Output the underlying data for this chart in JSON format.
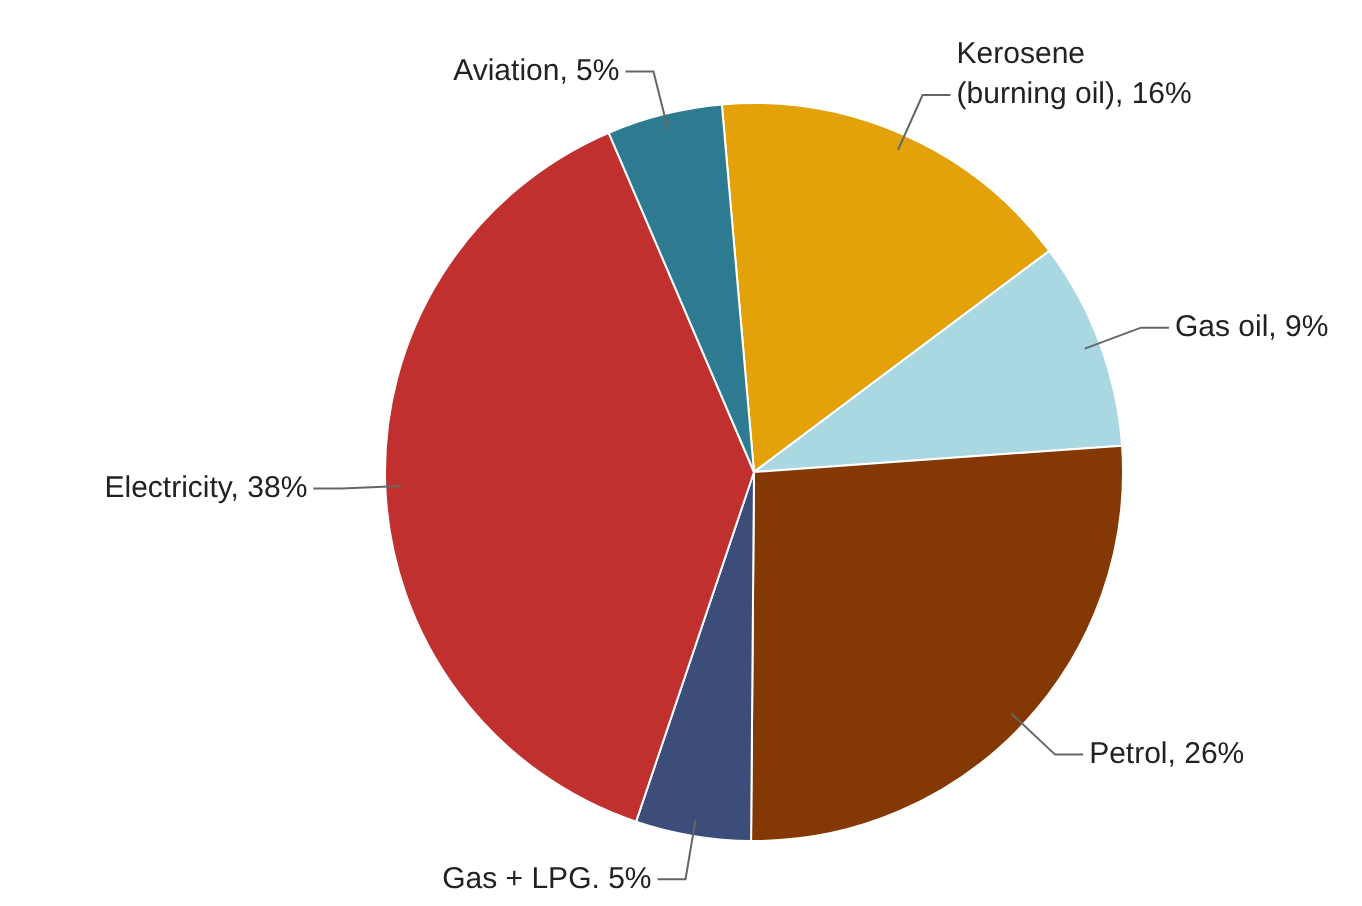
{
  "chart_data": {
    "type": "pie",
    "categories": [
      "Kerosene\n(burning oil)",
      "Gas oil",
      "Petrol",
      "Gas + LPG.",
      "Electricity",
      "Aviation"
    ],
    "values": [
      16,
      9,
      26,
      5,
      38,
      5
    ],
    "value_labels": [
      "16%",
      "9%",
      "26%",
      "5%",
      "38%",
      "5%"
    ],
    "colors": [
      "#e3a20a",
      "#a9d8e3",
      "#843905",
      "#3d4d7a",
      "#c0302f",
      "#2e7b91"
    ],
    "legend": false
  }
}
